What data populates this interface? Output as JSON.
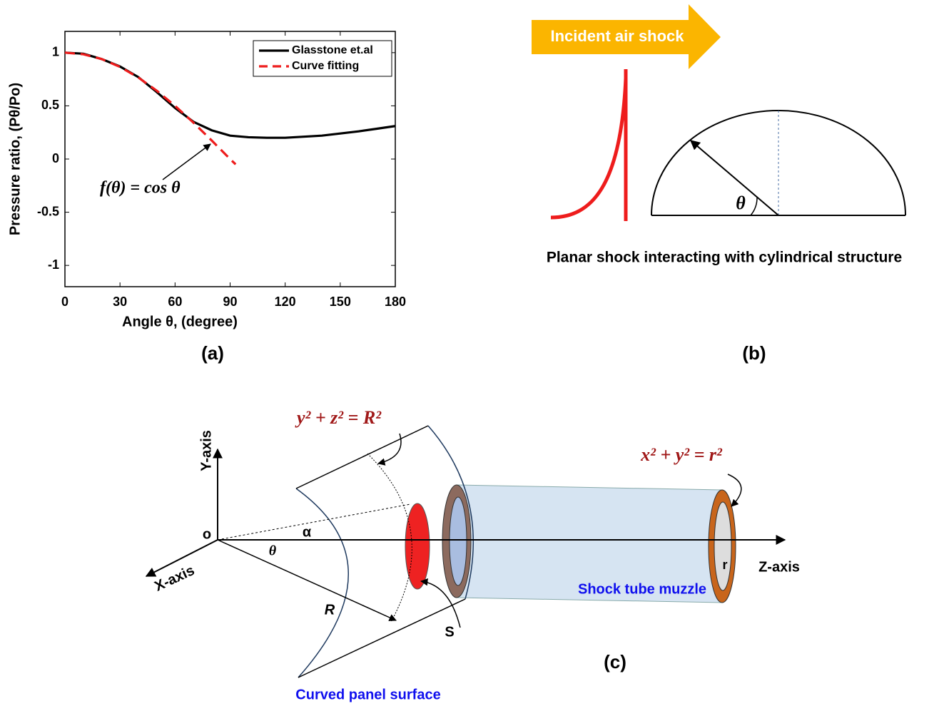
{
  "chart_data": {
    "type": "line",
    "xlabel": "Angle θ, (degree)",
    "ylabel": "Pressure ratio, (Pθ/Po)",
    "xlim": [
      0,
      180
    ],
    "xticks": [
      0,
      30,
      60,
      90,
      120,
      150,
      180
    ],
    "ylim": [
      -1.2,
      1.2
    ],
    "yticks": [
      -1,
      -0.5,
      0,
      0.5,
      1
    ],
    "legend": "upper right",
    "series": [
      {
        "name": "Glasstone et.al",
        "color": "#000000",
        "style": "solid",
        "x": [
          0,
          10,
          20,
          30,
          40,
          50,
          60,
          70,
          80,
          90,
          100,
          110,
          120,
          130,
          140,
          150,
          160,
          170,
          180
        ],
        "values": [
          1,
          0.99,
          0.94,
          0.87,
          0.77,
          0.63,
          0.48,
          0.35,
          0.27,
          0.22,
          0.205,
          0.2,
          0.2,
          0.21,
          0.22,
          0.24,
          0.26,
          0.285,
          0.31
        ]
      },
      {
        "name": "Curve fitting",
        "color": "#ee1c1c",
        "style": "dashed",
        "x": [
          0,
          10,
          20,
          30,
          40,
          50,
          60,
          70,
          80,
          90,
          93
        ],
        "values": [
          1,
          0.985,
          0.94,
          0.866,
          0.766,
          0.643,
          0.5,
          0.342,
          0.174,
          0,
          -0.05
        ]
      }
    ],
    "annotation": "f(θ) = cos θ",
    "panel_label": "(a)"
  },
  "diagram_b": {
    "arrow_label": "Incident air shock",
    "angle": "θ",
    "caption": "Planar shock interacting with cylindrical structure",
    "panel_label": "(b)"
  },
  "diagram_c": {
    "panel_equation": "y² + z² = R²",
    "tube_equation": "x² + y² = r²",
    "y_axis": "Y-axis",
    "x_axis": "X-axis",
    "z_axis": "Z-axis",
    "origin": "o",
    "alpha": "α",
    "theta": "θ",
    "radius_panel": "R",
    "radius_tube": "r",
    "area": "S",
    "tube_label": "Shock tube muzzle",
    "panel_label_text": "Curved panel surface",
    "panel_label": "(c)"
  }
}
